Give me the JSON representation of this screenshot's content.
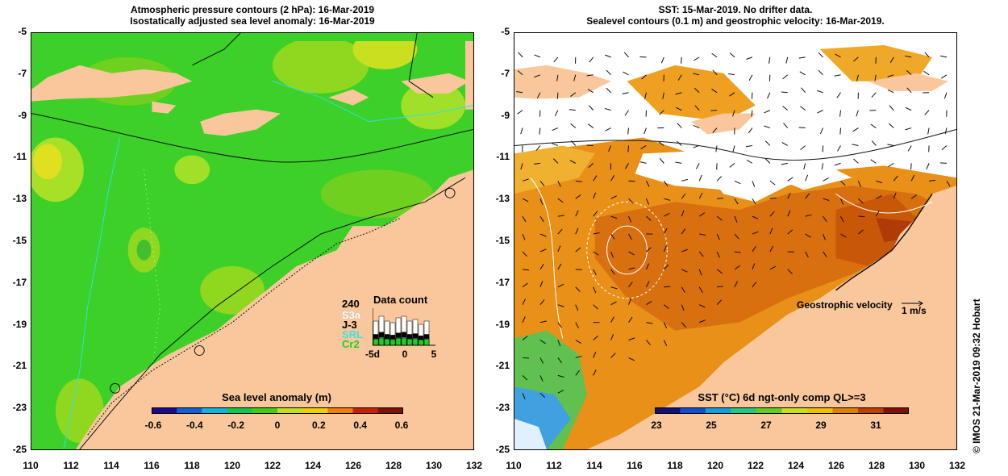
{
  "left_panel": {
    "title_line1": "Atmospheric pressure contours (2 hPa): 16-Mar-2019",
    "title_line2": "Isostatically adjusted sea level anomaly: 16-Mar-2019",
    "colorbar_label": "Sea level anomaly (m)",
    "colorbar_ticks": [
      "-0.6",
      "-0.4",
      "-0.2",
      "0",
      "0.2",
      "0.4",
      "0.6"
    ],
    "colorbar_stops": [
      "#1a0a8c",
      "#1060d8",
      "#10b4e0",
      "#10c850",
      "#40d010",
      "#c0e020",
      "#f0d000",
      "#f08000",
      "#c82000",
      "#801000"
    ],
    "data_count": {
      "title": "Data count",
      "max_label": "240",
      "series": [
        {
          "name": "S3a",
          "color": "#ffffff"
        },
        {
          "name": "J-3",
          "color": "#000000"
        },
        {
          "name": "SRL",
          "color": "#40e0e0"
        },
        {
          "name": "Cr2",
          "color": "#20d020"
        }
      ],
      "x_ticks": [
        "-5d",
        "0",
        "5"
      ]
    }
  },
  "right_panel": {
    "title_line1": "SST: 15-Mar-2019. No drifter data.",
    "title_line2": "Sealevel contours (0.1 m) and geostrophic velocity: 16-Mar-2019.",
    "colorbar_label": "SST (°C) 6d ngt-only comp QL>=3",
    "colorbar_ticks": [
      "23",
      "25",
      "27",
      "29",
      "31"
    ],
    "colorbar_stops": [
      "#10107a",
      "#1050d0",
      "#10a0e0",
      "#20c880",
      "#60d020",
      "#c8e020",
      "#f0c000",
      "#e08000",
      "#c04000",
      "#801000"
    ],
    "velocity_label": "Geostrophic velocity",
    "velocity_scale": "1 m/s"
  },
  "axes": {
    "x_ticks": [
      "110",
      "112",
      "114",
      "116",
      "118",
      "120",
      "122",
      "124",
      "126",
      "128",
      "130",
      "132"
    ],
    "y_ticks": [
      "-5",
      "-7",
      "-9",
      "-11",
      "-13",
      "-15",
      "-17",
      "-19",
      "-21",
      "-23",
      "-25"
    ]
  },
  "credit": "© IMOS 21-Mar-2019 09:32 Hobart",
  "colors": {
    "land": "#f9c79b",
    "ocean_green": "#3cd028",
    "sst_orange": "#e08a10",
    "cloud": "#ffffff"
  }
}
